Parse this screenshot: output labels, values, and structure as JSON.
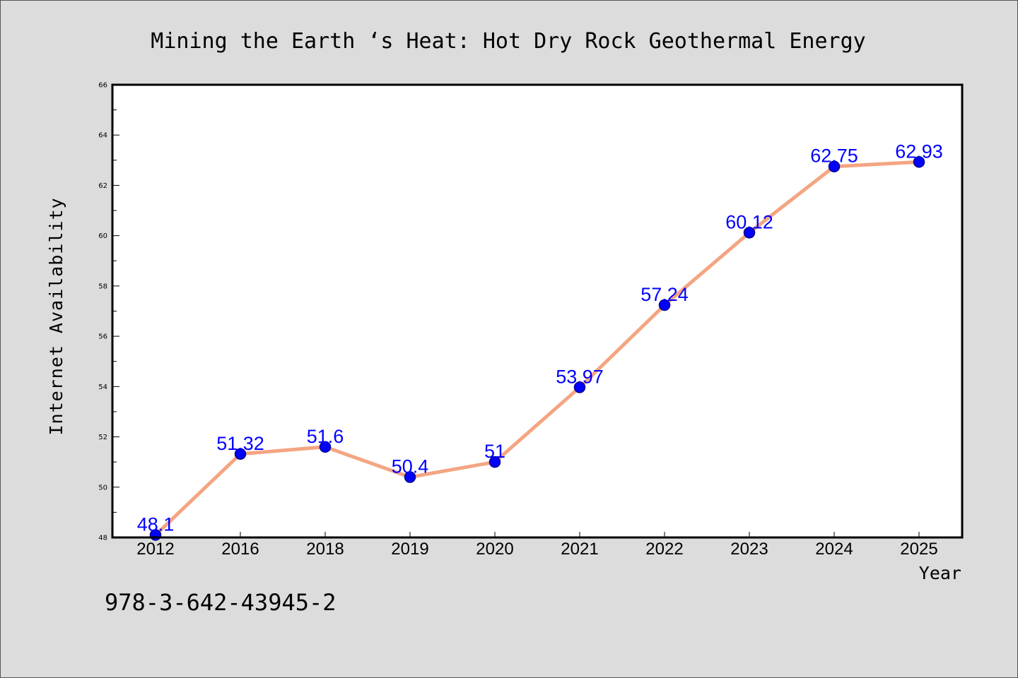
{
  "footer_text": "978-3-642-43945-2",
  "chart_data": {
    "type": "line",
    "title": "Mining the Earth ‘s Heat: Hot Dry Rock Geothermal Energy",
    "xlabel": "Year",
    "ylabel": "Internet Availability",
    "categories": [
      "2012",
      "2016",
      "2018",
      "2019",
      "2020",
      "2021",
      "2022",
      "2023",
      "2024",
      "2025"
    ],
    "series": [
      {
        "values": [
          48.1,
          51.32,
          51.6,
          50.4,
          51,
          53.97,
          57.24,
          60.12,
          62.75,
          62.93
        ],
        "data_labels": [
          "48.1",
          "51.32",
          "51.6",
          "50.4",
          "51",
          "53.97",
          "57.24",
          "60.12",
          "62.75",
          "62.93"
        ]
      }
    ],
    "ylim": [
      48,
      66
    ],
    "yticks": [
      48,
      50,
      52,
      54,
      56,
      58,
      60,
      62,
      64,
      66
    ],
    "grid": false,
    "colors": {
      "line": "#f4a582",
      "marker": "#0000ff",
      "marker_edge": "#00008b",
      "data_label": "#0000ff",
      "background": "#dcdcdc",
      "plot_background": "#ffffff"
    }
  }
}
